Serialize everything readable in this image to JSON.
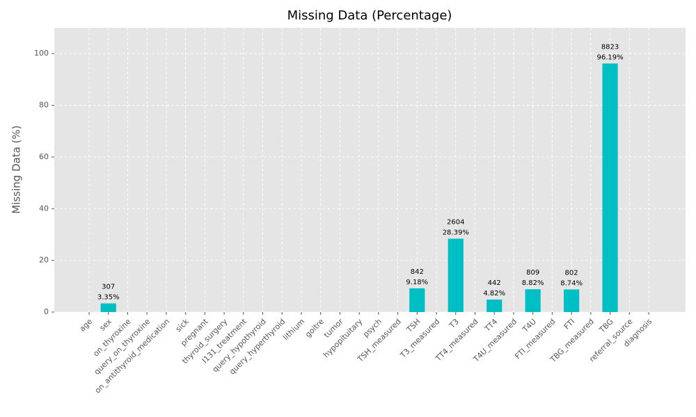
{
  "chart_data": {
    "type": "bar",
    "title": "Missing Data (Percentage)",
    "y_label": "Missing Data (%)",
    "categories": [
      "age",
      "sex",
      "on_thyroxine",
      "query_on_thyroxine",
      "on_antithyroid_medication",
      "sick",
      "pregnant",
      "thyroid_surgery",
      "I131_treatment",
      "query_hypothyroid",
      "query_hyperthyroid",
      "lithium",
      "goitre",
      "tumor",
      "hypopituitary",
      "psych",
      "TSH_measured",
      "TSH",
      "T3_measured",
      "T3",
      "TT4_measured",
      "TT4",
      "T4U_measured",
      "T4U",
      "FTI_measured",
      "FTI",
      "TBG_measured",
      "TBG",
      "referral_source",
      "diagnosis"
    ],
    "values": [
      0,
      3.35,
      0,
      0,
      0,
      0,
      0,
      0,
      0,
      0,
      0,
      0,
      0,
      0,
      0,
      0,
      0,
      9.18,
      0,
      28.39,
      0,
      4.82,
      0,
      8.82,
      0,
      8.74,
      0,
      96.19,
      0,
      0
    ],
    "value_labels": [
      null,
      "3.35%",
      null,
      null,
      null,
      null,
      null,
      null,
      null,
      null,
      null,
      null,
      null,
      null,
      null,
      null,
      null,
      "9.18%",
      null,
      "28.39%",
      null,
      "4.82%",
      null,
      "8.82%",
      null,
      "8.74%",
      null,
      "96.19%",
      null,
      null
    ],
    "counts": [
      null,
      307,
      null,
      null,
      null,
      null,
      null,
      null,
      null,
      null,
      null,
      null,
      null,
      null,
      null,
      null,
      null,
      842,
      null,
      2604,
      null,
      442,
      null,
      809,
      null,
      802,
      null,
      8823,
      null,
      null
    ],
    "color": "#00bfc4",
    "ylim": [
      0,
      110
    ],
    "yticks": [
      0,
      20,
      40,
      60,
      80,
      100
    ],
    "grid": true
  }
}
